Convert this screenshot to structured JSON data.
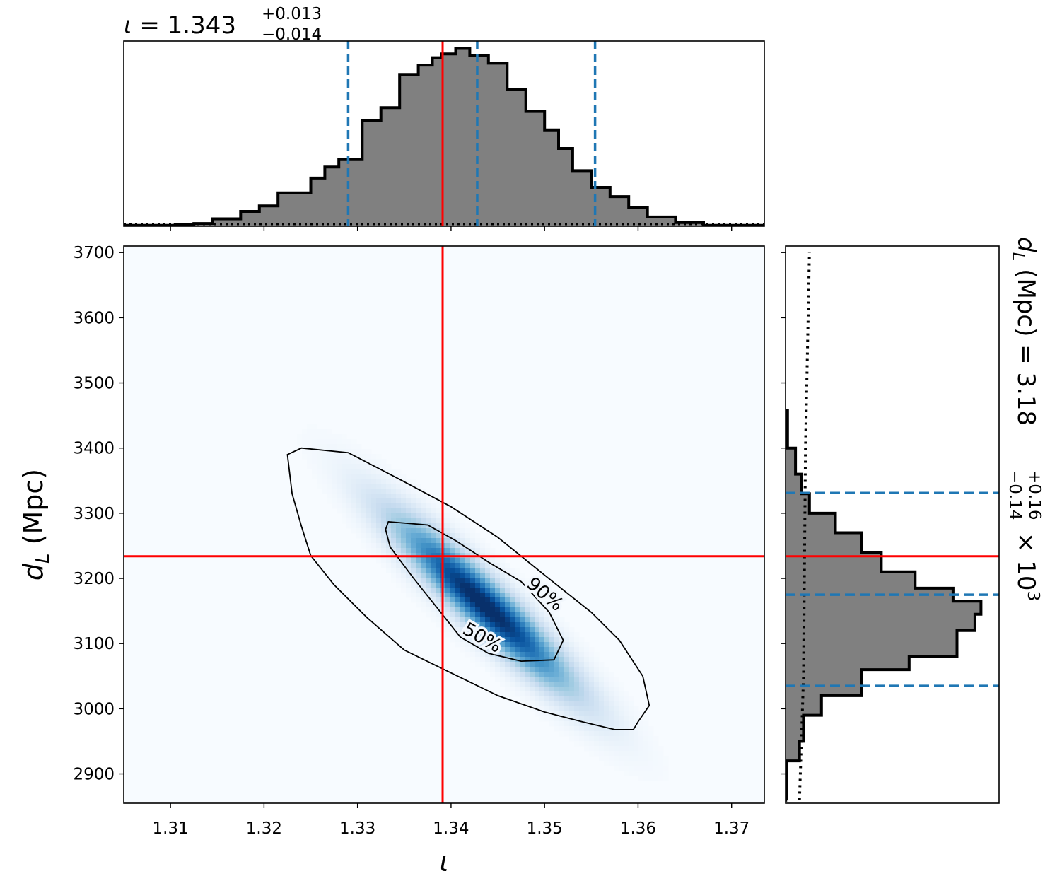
{
  "chart_data": {
    "type": "corner",
    "parameters": [
      "ι",
      "d_L"
    ],
    "top_title": {
      "param": "ι",
      "median": "1.343",
      "plus": "+0.013",
      "minus": "−0.014"
    },
    "right_title": {
      "param": "d",
      "sub": "L",
      "unit": " (Mpc) = ",
      "median": "3.18",
      "plus": "+0.16",
      "minus": "−0.14",
      "scale": "× 10",
      "exp": "3"
    },
    "xlabel": "ι",
    "ylabel": {
      "main": "d",
      "sub": "L",
      "unit": " (Mpc)"
    },
    "xlim": [
      1.305,
      1.3735
    ],
    "ylim": [
      2855,
      3710
    ],
    "xticks": [
      1.31,
      1.32,
      1.33,
      1.34,
      1.35,
      1.36,
      1.37
    ],
    "xtick_labels": [
      "1.31",
      "1.32",
      "1.33",
      "1.34",
      "1.35",
      "1.36",
      "1.37"
    ],
    "yticks": [
      2900,
      3000,
      3100,
      3200,
      3300,
      3400,
      3500,
      3600,
      3700
    ],
    "ytick_labels": [
      "2900",
      "3000",
      "3100",
      "3200",
      "3300",
      "3400",
      "3500",
      "3600",
      "3700"
    ],
    "injected": {
      "iota": 1.3391,
      "dL": 3234
    },
    "iota_hist": {
      "edges": [
        1.305,
        1.3105,
        1.3125,
        1.3145,
        1.3175,
        1.3195,
        1.3215,
        1.325,
        1.3265,
        1.328,
        1.3305,
        1.3325,
        1.3345,
        1.3365,
        1.338,
        1.339,
        1.3405,
        1.342,
        1.344,
        1.346,
        1.348,
        1.35,
        1.3515,
        1.353,
        1.355,
        1.357,
        1.359,
        1.361,
        1.364,
        1.367,
        1.3735
      ],
      "counts": [
        0.005,
        0.01,
        0.015,
        0.04,
        0.08,
        0.11,
        0.18,
        0.26,
        0.32,
        0.36,
        0.57,
        0.64,
        0.82,
        0.87,
        0.91,
        0.93,
        0.96,
        0.92,
        0.88,
        0.74,
        0.62,
        0.52,
        0.42,
        0.3,
        0.21,
        0.16,
        0.1,
        0.05,
        0.02,
        0.005
      ],
      "quantile_lines": [
        1.329,
        1.3428,
        1.3554
      ]
    },
    "dL_hist": {
      "edges": [
        2860,
        2920,
        2950,
        2990,
        3020,
        3060,
        3080,
        3120,
        3145,
        3165,
        3185,
        3210,
        3240,
        3270,
        3300,
        3330,
        3360,
        3400,
        3460
      ],
      "counts": [
        0.005,
        0.07,
        0.09,
        0.18,
        0.38,
        0.62,
        0.86,
        0.95,
        0.98,
        0.84,
        0.65,
        0.48,
        0.38,
        0.25,
        0.12,
        0.08,
        0.05,
        0.01
      ],
      "quantile_lines": [
        3035,
        3175,
        3331
      ],
      "prior_line": {
        "x_frac": [
          0.07,
          0.09,
          0.1,
          0.12
        ],
        "y": [
          2860,
          3050,
          3400,
          3700
        ]
      }
    },
    "posterior_2d": {
      "center": [
        1.3435,
        3160
      ],
      "sigma_iota": 0.0065,
      "sigma_dL": 90,
      "correlation": -0.93
    },
    "contours": [
      {
        "label": "50%",
        "points": [
          [
            1.3333,
            3287
          ],
          [
            1.3375,
            3282
          ],
          [
            1.3405,
            3258
          ],
          [
            1.344,
            3225
          ],
          [
            1.3475,
            3195
          ],
          [
            1.3505,
            3148
          ],
          [
            1.352,
            3105
          ],
          [
            1.351,
            3075
          ],
          [
            1.3475,
            3073
          ],
          [
            1.344,
            3085
          ],
          [
            1.341,
            3110
          ],
          [
            1.3385,
            3155
          ],
          [
            1.336,
            3200
          ],
          [
            1.3335,
            3248
          ],
          [
            1.333,
            3275
          ]
        ]
      },
      {
        "label": "90%",
        "points": [
          [
            1.3225,
            3390
          ],
          [
            1.324,
            3400
          ],
          [
            1.329,
            3393
          ],
          [
            1.3345,
            3352
          ],
          [
            1.34,
            3310
          ],
          [
            1.345,
            3263
          ],
          [
            1.35,
            3205
          ],
          [
            1.355,
            3148
          ],
          [
            1.358,
            3105
          ],
          [
            1.3605,
            3050
          ],
          [
            1.3612,
            3005
          ],
          [
            1.36,
            2980
          ],
          [
            1.3595,
            2968
          ],
          [
            1.3575,
            2968
          ],
          [
            1.354,
            2980
          ],
          [
            1.35,
            2995
          ],
          [
            1.345,
            3020
          ],
          [
            1.34,
            3055
          ],
          [
            1.335,
            3090
          ],
          [
            1.331,
            3140
          ],
          [
            1.3275,
            3190
          ],
          [
            1.325,
            3235
          ],
          [
            1.324,
            3280
          ],
          [
            1.323,
            3330
          ]
        ]
      }
    ],
    "contour_labels": [
      {
        "text": "90%",
        "x": 1.35,
        "y": 3175,
        "angle": 40
      },
      {
        "text": "50%",
        "x": 1.3433,
        "y": 3108,
        "angle": 30
      }
    ],
    "colors": {
      "hist_fill": "#808080",
      "hist_edge": "#000000",
      "quantile": "#1f77b4",
      "truth": "#ff0000",
      "contour": "#000000",
      "density_low": "#f7fbff",
      "density_high": "#08306b"
    }
  }
}
